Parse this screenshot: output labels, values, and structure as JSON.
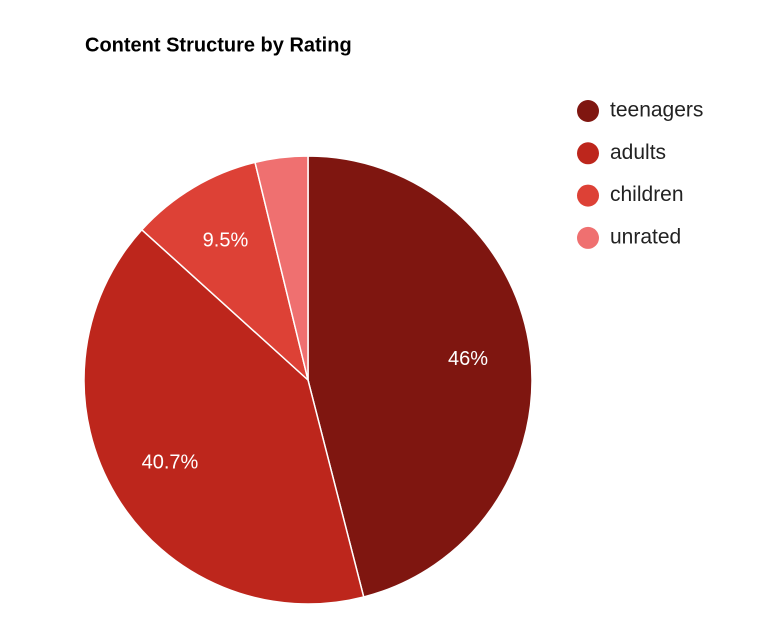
{
  "chart_data": {
    "type": "pie",
    "title": "Content Structure by Rating",
    "categories": [
      "teenagers",
      "adults",
      "children",
      "unrated"
    ],
    "values": [
      46,
      40.7,
      9.5,
      3.8
    ],
    "value_labels": [
      "46%",
      "40.7%",
      "9.5%",
      null
    ],
    "colors": [
      "#7f1610",
      "#bd261c",
      "#dd4136",
      "#ef7070"
    ],
    "legend": "right"
  }
}
